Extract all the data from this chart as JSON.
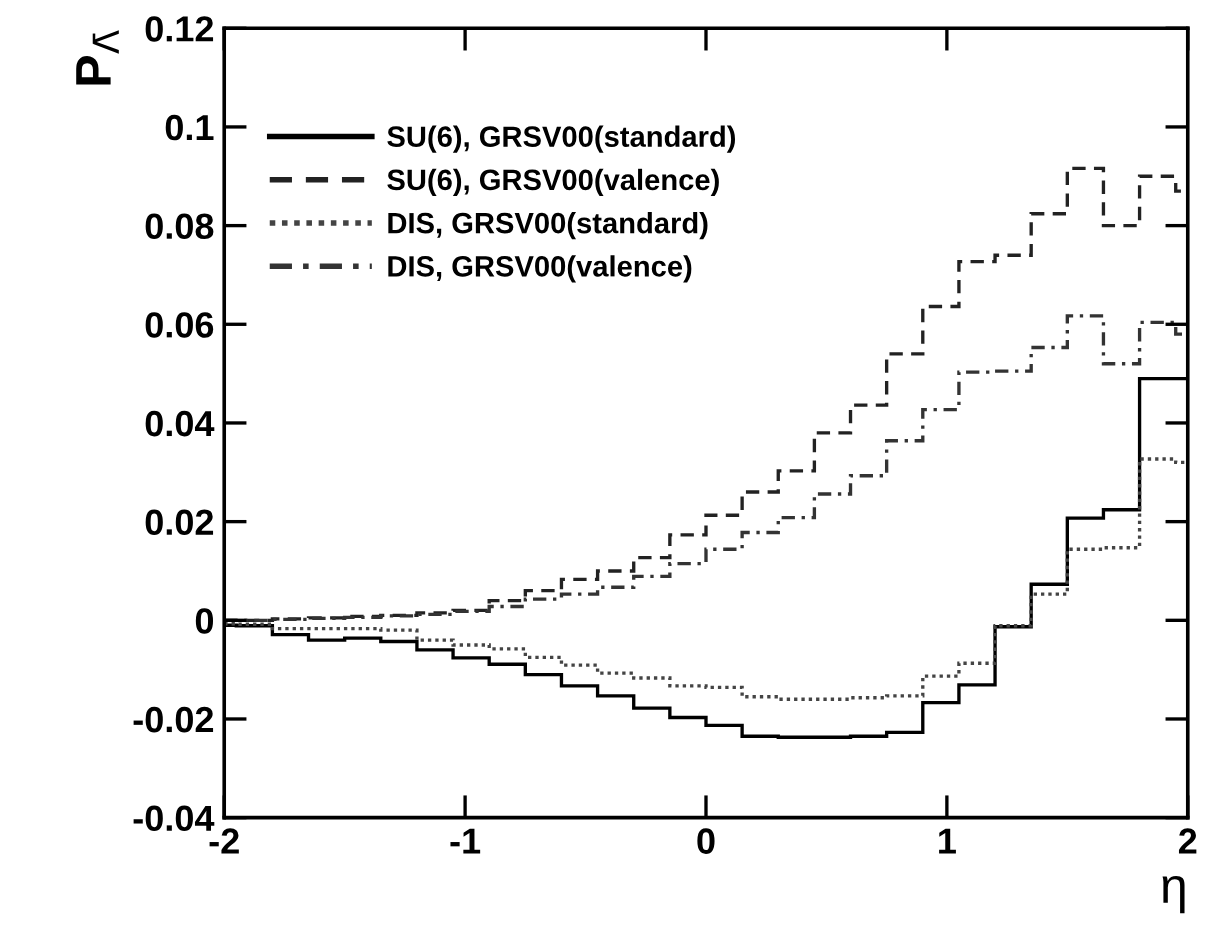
{
  "chart_data": {
    "type": "histogram",
    "xlabel": "η",
    "ylabel": "P$_{Λ̄}$",
    "bins": [
      -2,
      -1.95,
      -1.8,
      -1.65,
      -1.5,
      -1.35,
      -1.2,
      -1.05,
      -0.9,
      -0.75,
      -0.6,
      -0.45,
      -0.3,
      -0.15,
      0,
      0.15,
      0.3,
      0.45,
      0.6,
      0.75,
      0.9,
      1.05,
      1.2,
      1.35,
      1.5,
      1.65,
      1.8,
      1.95,
      2
    ],
    "series": [
      {
        "name": "SU(6), GRSV00(standard)",
        "color": "#000000",
        "line_style": "solid",
        "values": [
          -0.001,
          -0.0011,
          -0.0029,
          -0.004,
          -0.0036,
          -0.0043,
          -0.006,
          -0.0076,
          -0.0089,
          -0.011,
          -0.0133,
          -0.0153,
          -0.0178,
          -0.0197,
          -0.0213,
          -0.0235,
          -0.0237,
          -0.0237,
          -0.0235,
          -0.0227,
          -0.0167,
          -0.0131,
          -0.0013,
          0.0073,
          0.0207,
          0.0224,
          0.049,
          0.049
        ]
      },
      {
        "name": "SU(6), GRSV00(valence)",
        "color": "#222222",
        "line_style": "dashed",
        "values": [
          0.0,
          0.0,
          0.0003,
          0.0005,
          0.0008,
          0.001,
          0.0015,
          0.002,
          0.004,
          0.006,
          0.0083,
          0.01,
          0.0127,
          0.0173,
          0.0213,
          0.026,
          0.0303,
          0.038,
          0.0436,
          0.054,
          0.0636,
          0.0727,
          0.074,
          0.0824,
          0.0916,
          0.08,
          0.09,
          0.087
        ]
      },
      {
        "name": "DIS, GRSV00(standard)",
        "color": "#444444",
        "line_style": "dotted",
        "values": [
          -0.0007,
          -0.0008,
          -0.0017,
          -0.0017,
          -0.0017,
          -0.002,
          -0.004,
          -0.005,
          -0.0058,
          -0.0075,
          -0.0091,
          -0.0107,
          -0.0117,
          -0.0133,
          -0.0136,
          -0.0155,
          -0.016,
          -0.016,
          -0.0157,
          -0.0153,
          -0.0113,
          -0.0087,
          -0.0011,
          0.0053,
          0.0144,
          0.0147,
          0.0327,
          0.032
        ]
      },
      {
        "name": "DIS, GRSV00(valence)",
        "color": "#333333",
        "line_style": "dashdot",
        "values": [
          0.0,
          0.0,
          0.0002,
          0.0004,
          0.0006,
          0.0009,
          0.0012,
          0.0018,
          0.0028,
          0.0043,
          0.0053,
          0.0067,
          0.0089,
          0.0115,
          0.0144,
          0.0178,
          0.0208,
          0.0256,
          0.0293,
          0.0364,
          0.0427,
          0.0503,
          0.0505,
          0.0553,
          0.0617,
          0.052,
          0.0604,
          0.058
        ]
      }
    ],
    "xlim": [
      -2,
      2
    ],
    "xticks": [
      -2,
      -1,
      0,
      1,
      2
    ],
    "ylim": [
      -0.04,
      0.12
    ],
    "yticks": [
      -0.04,
      -0.02,
      0,
      0.02,
      0.04,
      0.06,
      0.08,
      0.1,
      0.12
    ],
    "grid": false,
    "legend": "top left"
  }
}
